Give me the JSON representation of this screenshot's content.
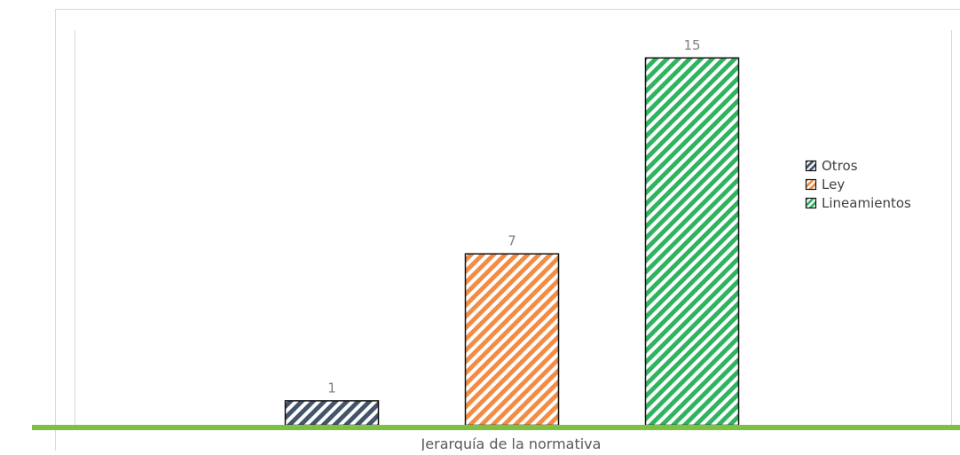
{
  "chart_data": {
    "type": "bar",
    "title": "",
    "xlabel": "Jerarquía de la normativa",
    "ylabel": "",
    "ylim": [
      0,
      16
    ],
    "grid": false,
    "legend_position": "right",
    "series": [
      {
        "name": "Otros",
        "values": [
          1
        ],
        "data_label": "1",
        "color": "#44546a"
      },
      {
        "name": "Ley",
        "values": [
          7
        ],
        "data_label": "7",
        "color": "#f28c45"
      },
      {
        "name": "Lineamientos",
        "values": [
          15
        ],
        "data_label": "15",
        "color": "#2fb35f"
      }
    ]
  },
  "colors": {
    "baseline": "#7cc142",
    "frame_border": "#d9d9d9",
    "data_label": "#7f7f7f",
    "legend_text": "#404040",
    "axis_title": "#595959"
  }
}
